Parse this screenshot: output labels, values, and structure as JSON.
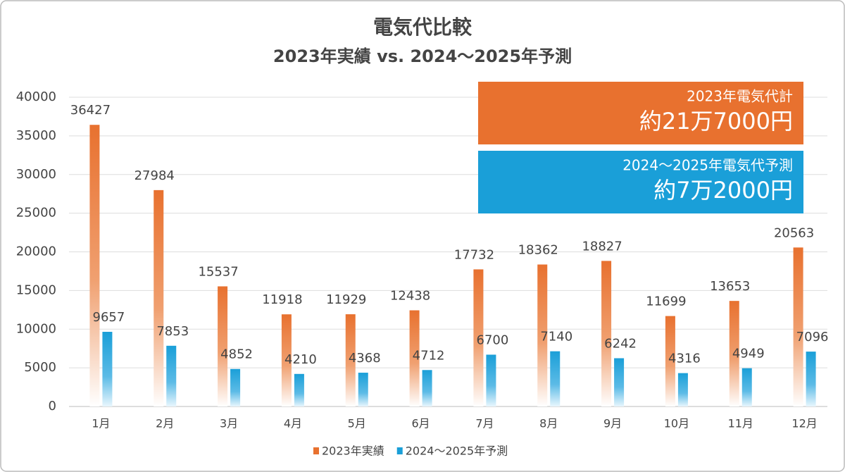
{
  "chart_data": {
    "type": "bar",
    "title": "電気代比較",
    "subtitle": "2023年実績 vs. 2024～2025年予測",
    "categories": [
      "1月",
      "2月",
      "3月",
      "4月",
      "5月",
      "6月",
      "7月",
      "8月",
      "9月",
      "10月",
      "11月",
      "12月"
    ],
    "series": [
      {
        "name": "2023年実績",
        "color": "#e8712f",
        "values": [
          36427,
          27984,
          15537,
          11918,
          11929,
          12438,
          17732,
          18362,
          18827,
          11699,
          13653,
          20563
        ]
      },
      {
        "name": "2024～2025年予測",
        "color": "#1a9fd8",
        "values": [
          9657,
          7853,
          4852,
          4210,
          4368,
          4712,
          6700,
          7140,
          6242,
          4316,
          4949,
          7096
        ]
      }
    ],
    "ylim": [
      0,
      40000
    ],
    "yticks": [
      0,
      5000,
      10000,
      15000,
      20000,
      25000,
      30000,
      35000,
      40000
    ],
    "grid": true,
    "legend": "bottom",
    "annotations": [
      {
        "label": "2023年電気代計",
        "text": "約21万7000円",
        "color": "#e8712f"
      },
      {
        "label": "2024～2025年電気代予測",
        "text": "約7万2000円",
        "color": "#1a9fd8"
      }
    ]
  }
}
